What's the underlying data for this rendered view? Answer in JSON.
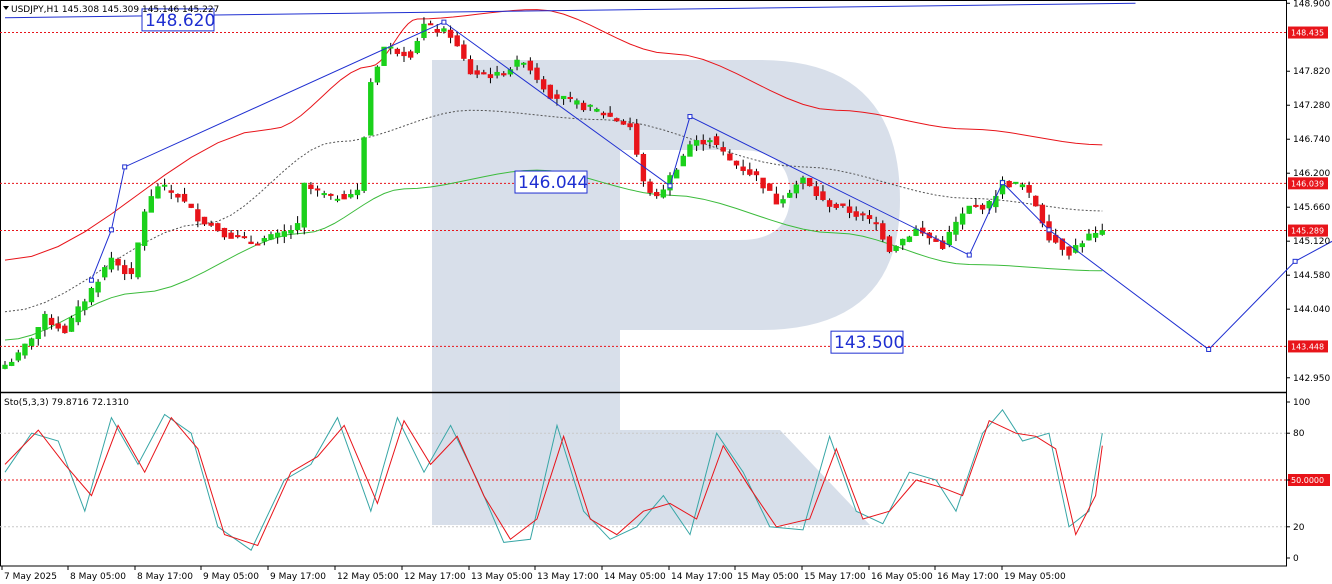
{
  "chart_data": {
    "type": "candlestick",
    "symbol_header": "USDJPY,H1  145.308 145.309 145.146 145.227",
    "indicator_header": "Sto(5,3,3) 79.8716 72.1310",
    "price_axis": {
      "ticks": [
        "148.900",
        "147.820",
        "147.280",
        "146.740",
        "146.200",
        "145.660",
        "145.120",
        "144.580",
        "144.040",
        "142.950"
      ],
      "tick_values": [
        148.9,
        147.82,
        147.28,
        146.74,
        146.2,
        145.66,
        145.12,
        144.58,
        144.04,
        142.95
      ],
      "range": [
        142.74,
        148.92
      ]
    },
    "osc_axis": {
      "ticks": [
        "100",
        "80",
        "50.0000",
        "20",
        "0"
      ],
      "tick_values": [
        100,
        80,
        50,
        20,
        0
      ],
      "range": [
        0,
        100
      ]
    },
    "time_labels": [
      "7 May 2025",
      "8 May 05:00",
      "8 May 17:00",
      "9 May 05:00",
      "9 May 17:00",
      "12 May 05:00",
      "12 May 17:00",
      "13 May 05:00",
      "13 May 17:00",
      "14 May 05:00",
      "14 May 17:00",
      "15 May 05:00",
      "15 May 17:00",
      "16 May 05:00",
      "16 May 17:00",
      "19 May 05:00"
    ],
    "levels": [
      {
        "value": 148.435,
        "label": "148.435",
        "color": "#e8141a"
      },
      {
        "value": 146.039,
        "label": "146.039",
        "color": "#e8141a"
      },
      {
        "value": 145.289,
        "label": "145.289",
        "color": "#e8141a"
      },
      {
        "value": 143.448,
        "label": "143.448",
        "color": "#e8141a"
      }
    ],
    "annotations": [
      {
        "text": "148.620",
        "value": 148.62
      },
      {
        "text": "146.044",
        "value": 146.044
      },
      {
        "text": "143.500",
        "value": 143.5
      }
    ],
    "close_path": [
      {
        "bar": 0,
        "value": 143.15
      },
      {
        "bar": 2,
        "value": 143.3
      },
      {
        "bar": 6,
        "value": 143.9
      },
      {
        "bar": 9,
        "value": 143.7
      },
      {
        "bar": 13,
        "value": 144.35
      },
      {
        "bar": 16,
        "value": 144.85
      },
      {
        "bar": 19,
        "value": 144.55
      },
      {
        "bar": 21,
        "value": 145.6
      },
      {
        "bar": 23,
        "value": 146.0
      },
      {
        "bar": 26,
        "value": 145.85
      },
      {
        "bar": 29,
        "value": 145.5
      },
      {
        "bar": 33,
        "value": 145.25
      },
      {
        "bar": 37,
        "value": 145.1
      },
      {
        "bar": 41,
        "value": 145.2
      },
      {
        "bar": 44,
        "value": 145.35
      },
      {
        "bar": 45,
        "value": 146.0
      },
      {
        "bar": 49,
        "value": 145.8
      },
      {
        "bar": 53,
        "value": 145.9
      },
      {
        "bar": 55,
        "value": 147.65
      },
      {
        "bar": 57,
        "value": 148.2
      },
      {
        "bar": 61,
        "value": 148.1
      },
      {
        "bar": 63,
        "value": 148.55
      },
      {
        "bar": 67,
        "value": 148.4
      },
      {
        "bar": 70,
        "value": 147.8
      },
      {
        "bar": 74,
        "value": 147.75
      },
      {
        "bar": 78,
        "value": 148.0
      },
      {
        "bar": 82,
        "value": 147.45
      },
      {
        "bar": 86,
        "value": 147.3
      },
      {
        "bar": 90,
        "value": 147.15
      },
      {
        "bar": 94,
        "value": 146.95
      },
      {
        "bar": 96,
        "value": 146.05
      },
      {
        "bar": 98,
        "value": 145.8
      },
      {
        "bar": 101,
        "value": 146.3
      },
      {
        "bar": 103,
        "value": 146.65
      },
      {
        "bar": 106,
        "value": 146.75
      },
      {
        "bar": 109,
        "value": 146.4
      },
      {
        "bar": 113,
        "value": 146.15
      },
      {
        "bar": 116,
        "value": 145.75
      },
      {
        "bar": 120,
        "value": 146.1
      },
      {
        "bar": 123,
        "value": 145.75
      },
      {
        "bar": 127,
        "value": 145.6
      },
      {
        "bar": 131,
        "value": 145.4
      },
      {
        "bar": 133,
        "value": 145.0
      },
      {
        "bar": 137,
        "value": 145.3
      },
      {
        "bar": 141,
        "value": 145.05
      },
      {
        "bar": 143,
        "value": 145.4
      },
      {
        "bar": 145,
        "value": 145.65
      },
      {
        "bar": 148,
        "value": 145.7
      },
      {
        "bar": 150,
        "value": 146.05
      },
      {
        "bar": 153,
        "value": 146.0
      },
      {
        "bar": 155,
        "value": 145.7
      },
      {
        "bar": 157,
        "value": 145.2
      },
      {
        "bar": 160,
        "value": 144.95
      },
      {
        "bar": 163,
        "value": 145.2
      },
      {
        "bar": 165,
        "value": 145.23
      }
    ],
    "ma_red": [
      [
        0,
        144.82
      ],
      [
        40,
        146.9
      ],
      [
        55,
        147.9
      ],
      [
        62,
        148.65
      ],
      [
        80,
        148.8
      ],
      [
        100,
        148.1
      ],
      [
        125,
        147.2
      ],
      [
        145,
        146.9
      ],
      [
        165,
        146.65
      ]
    ],
    "ma_green": [
      [
        0,
        143.55
      ],
      [
        20,
        144.3
      ],
      [
        45,
        145.25
      ],
      [
        60,
        145.95
      ],
      [
        80,
        146.25
      ],
      [
        100,
        145.85
      ],
      [
        125,
        145.25
      ],
      [
        145,
        144.75
      ],
      [
        165,
        144.65
      ]
    ],
    "ma_dotted": [
      [
        0,
        144.0
      ],
      [
        30,
        145.4
      ],
      [
        50,
        146.7
      ],
      [
        70,
        147.2
      ],
      [
        90,
        147.05
      ],
      [
        120,
        146.3
      ],
      [
        145,
        145.8
      ],
      [
        165,
        145.6
      ]
    ],
    "stoch_main": [
      [
        0,
        55
      ],
      [
        4,
        80
      ],
      [
        8,
        75
      ],
      [
        12,
        30
      ],
      [
        16,
        90
      ],
      [
        20,
        60
      ],
      [
        24,
        92
      ],
      [
        28,
        80
      ],
      [
        32,
        20
      ],
      [
        37,
        5
      ],
      [
        42,
        50
      ],
      [
        46,
        60
      ],
      [
        50,
        90
      ],
      [
        55,
        30
      ],
      [
        59,
        90
      ],
      [
        63,
        55
      ],
      [
        67,
        85
      ],
      [
        71,
        50
      ],
      [
        75,
        10
      ],
      [
        79,
        12
      ],
      [
        83,
        85
      ],
      [
        87,
        30
      ],
      [
        91,
        12
      ],
      [
        95,
        20
      ],
      [
        99,
        40
      ],
      [
        103,
        15
      ],
      [
        107,
        80
      ],
      [
        111,
        55
      ],
      [
        115,
        20
      ],
      [
        120,
        18
      ],
      [
        124,
        78
      ],
      [
        128,
        30
      ],
      [
        132,
        22
      ],
      [
        136,
        55
      ],
      [
        140,
        50
      ],
      [
        143,
        30
      ],
      [
        147,
        80
      ],
      [
        150,
        95
      ],
      [
        153,
        75
      ],
      [
        157,
        80
      ],
      [
        160,
        20
      ],
      [
        163,
        30
      ],
      [
        165,
        80
      ]
    ],
    "stoch_signal": [
      [
        0,
        60
      ],
      [
        5,
        82
      ],
      [
        9,
        60
      ],
      [
        13,
        40
      ],
      [
        17,
        85
      ],
      [
        21,
        55
      ],
      [
        25,
        90
      ],
      [
        29,
        70
      ],
      [
        33,
        15
      ],
      [
        38,
        8
      ],
      [
        43,
        55
      ],
      [
        47,
        65
      ],
      [
        51,
        85
      ],
      [
        56,
        35
      ],
      [
        60,
        88
      ],
      [
        64,
        60
      ],
      [
        68,
        78
      ],
      [
        72,
        40
      ],
      [
        76,
        12
      ],
      [
        80,
        25
      ],
      [
        84,
        78
      ],
      [
        88,
        25
      ],
      [
        92,
        15
      ],
      [
        96,
        30
      ],
      [
        100,
        35
      ],
      [
        104,
        25
      ],
      [
        108,
        72
      ],
      [
        112,
        45
      ],
      [
        116,
        20
      ],
      [
        121,
        25
      ],
      [
        125,
        70
      ],
      [
        129,
        25
      ],
      [
        133,
        30
      ],
      [
        137,
        50
      ],
      [
        141,
        45
      ],
      [
        144,
        40
      ],
      [
        148,
        88
      ],
      [
        152,
        80
      ],
      [
        155,
        78
      ],
      [
        158,
        70
      ],
      [
        161,
        15
      ],
      [
        164,
        40
      ],
      [
        165,
        72
      ]
    ],
    "trend_lines": [
      {
        "from": [
          0,
          148.67
        ],
        "to": [
          170,
          148.9
        ],
        "color": "#1f2fd1"
      }
    ],
    "zigzag": [
      [
        13,
        144.5
      ],
      [
        16,
        145.3
      ],
      [
        18,
        146.3
      ],
      [
        66,
        148.6
      ],
      [
        100,
        146.0
      ],
      [
        103,
        147.1
      ],
      [
        145,
        144.9
      ],
      [
        150,
        146.05
      ],
      [
        157,
        145.3
      ],
      [
        181,
        143.4
      ],
      [
        194,
        144.8
      ],
      [
        208,
        145.6
      ]
    ],
    "watermark": "R"
  }
}
